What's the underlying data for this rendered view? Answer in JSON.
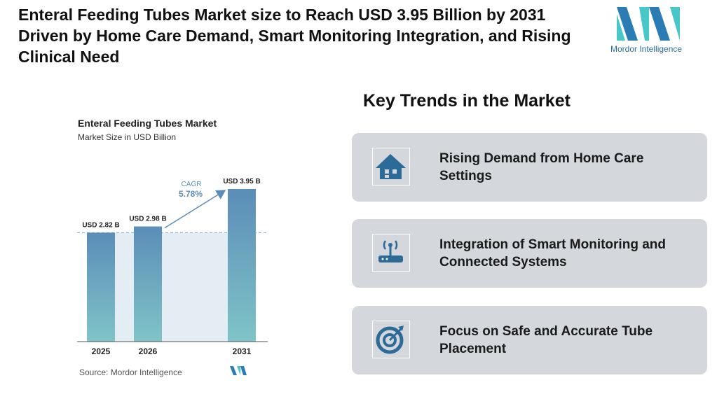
{
  "header": {
    "title": "Enteral Feeding Tubes Market size to Reach USD 3.95 Billion by 2031 Driven by Home Care Demand, Smart Monitoring Integration, and Rising Clinical Need",
    "logo_text": "Mordor Intelligence"
  },
  "chart_data": {
    "type": "bar",
    "title": "Enteral Feeding Tubes Market",
    "subtitle": "Market Size in USD Billion",
    "categories": [
      "2025",
      "2026",
      "2031"
    ],
    "values": [
      2.82,
      2.98,
      3.95
    ],
    "value_labels": [
      "USD 2.82 B",
      "USD 2.98 B",
      "USD 3.95 B"
    ],
    "annotations": [
      "CAGR",
      "5.78%"
    ],
    "source": "Source: Mordor Intelligence",
    "color": "#5b8db8"
  },
  "trends": {
    "title": "Key Trends in the Market",
    "items": [
      "Rising Demand from Home Care Settings",
      "Integration of Smart Monitoring and Connected Systems",
      "Focus on Safe and Accurate Tube Placement"
    ]
  }
}
